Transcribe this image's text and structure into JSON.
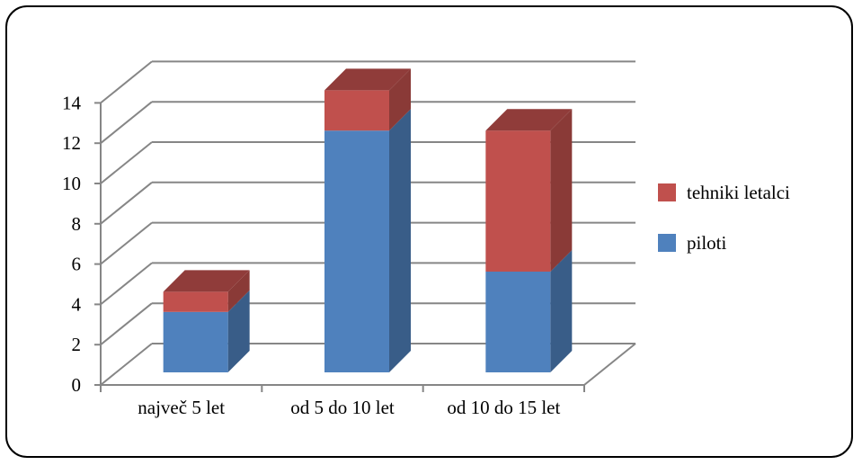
{
  "chart_data": {
    "type": "bar",
    "stacked": true,
    "three_d": true,
    "categories": [
      "največ 5 let",
      "od 5 do 10 let",
      "od 10 do 15 let"
    ],
    "series": [
      {
        "name": "piloti",
        "values": [
          3,
          12,
          5
        ],
        "color": "#4F81BD"
      },
      {
        "name": "tehniki letalci",
        "values": [
          1,
          2,
          7
        ],
        "color": "#C0504D"
      }
    ],
    "ylim": [
      0,
      14
    ],
    "yticks": [
      0,
      2,
      4,
      6,
      8,
      10,
      12,
      14
    ],
    "grid": true,
    "legend": "right"
  }
}
